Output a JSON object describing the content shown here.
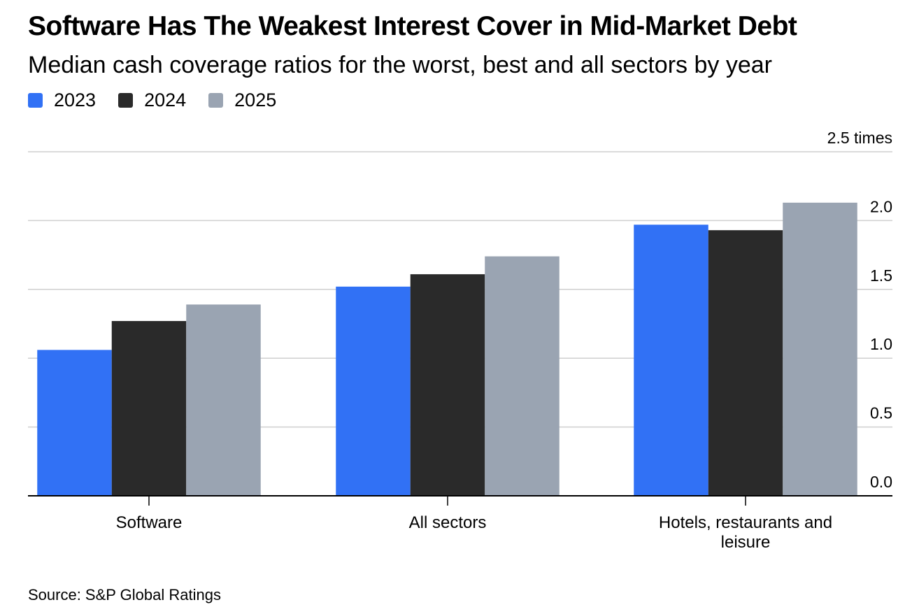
{
  "header": {
    "title": "Software Has The Weakest Interest Cover in Mid-Market Debt",
    "subtitle": "Median cash coverage ratios for the worst, best and all sectors by year"
  },
  "legend": [
    {
      "label": "2023",
      "color": "#3171F5"
    },
    {
      "label": "2024",
      "color": "#2A2A2A"
    },
    {
      "label": "2025",
      "color": "#9AA4B2"
    }
  ],
  "chart_data": {
    "type": "bar",
    "title": "Software Has The Weakest Interest Cover in Mid-Market Debt",
    "subtitle": "Median cash coverage ratios for the worst, best and all sectors by year",
    "categories": [
      "Software",
      "All sectors",
      "Hotels, restaurants and leisure"
    ],
    "series": [
      {
        "name": "2023",
        "color": "#3171F5",
        "values": [
          1.06,
          1.52,
          1.97
        ]
      },
      {
        "name": "2024",
        "color": "#2A2A2A",
        "values": [
          1.27,
          1.61,
          1.93
        ]
      },
      {
        "name": "2025",
        "color": "#9AA4B2",
        "values": [
          1.39,
          1.74,
          2.13
        ]
      }
    ],
    "ylim": [
      0,
      2.5
    ],
    "yticks": [
      {
        "value": 0,
        "label": "0.0"
      },
      {
        "value": 0.5,
        "label": "0.5"
      },
      {
        "value": 1,
        "label": "1.0"
      },
      {
        "value": 1.5,
        "label": "1.5"
      },
      {
        "value": 2,
        "label": "2.0"
      },
      {
        "value": 2.5,
        "label": "2.5 times"
      }
    ],
    "xlabel": "",
    "ylabel": "times",
    "grid": true,
    "y_axis_side": "right"
  },
  "footer": {
    "source": "Source: S&P Global Ratings"
  }
}
